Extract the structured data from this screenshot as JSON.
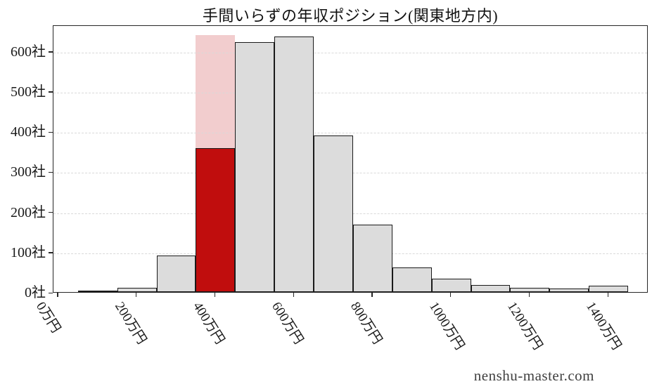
{
  "page": {
    "title": "手間いらずの年収ポジション(関東地方内)",
    "watermark": "nenshu-master.com"
  },
  "chart_data": {
    "type": "bar",
    "subtype": "histogram",
    "title": "手間いらずの年収ポジション(関東地方内)",
    "xlabel": "",
    "ylabel": "",
    "unit_x": "万円",
    "unit_y": "社",
    "grid": "horizontal",
    "legend": "none",
    "xlim": [
      -12.5,
      1502
    ],
    "ylim": [
      0,
      666
    ],
    "bin_edges": [
      50,
      150,
      250,
      350,
      450,
      550,
      650,
      750,
      850,
      950,
      1050,
      1150,
      1250,
      1350,
      1450
    ],
    "bin_centers": [
      100,
      200,
      300,
      400,
      500,
      600,
      700,
      800,
      900,
      1000,
      1100,
      1200,
      1300,
      1400
    ],
    "values": [
      2,
      11,
      91,
      640,
      622,
      637,
      390,
      167,
      62,
      33,
      17,
      10,
      8,
      16
    ],
    "highlight": {
      "bin_index": 3,
      "bin_label": "400万円",
      "bin_total": 640,
      "company_position": 359,
      "bar_color": "#c00d0d",
      "bin_bg_color": "#f2cdce"
    },
    "bar_color": "#dcdcdc",
    "bar_edge_color": "#1a1a1a",
    "grid_color": "#d9d9d9",
    "axis_color": "#262626",
    "text_color": "#1a1a1a",
    "x_ticks": [
      {
        "v": 0,
        "label": "0万円"
      },
      {
        "v": 200,
        "label": "200万円"
      },
      {
        "v": 400,
        "label": "400万円"
      },
      {
        "v": 600,
        "label": "600万円"
      },
      {
        "v": 800,
        "label": "800万円"
      },
      {
        "v": 1000,
        "label": "1000万円"
      },
      {
        "v": 1200,
        "label": "1200万円"
      },
      {
        "v": 1400,
        "label": "1400万円"
      }
    ],
    "y_ticks": [
      {
        "v": 0,
        "label": "0社"
      },
      {
        "v": 100,
        "label": "100社"
      },
      {
        "v": 200,
        "label": "200社"
      },
      {
        "v": 300,
        "label": "300社"
      },
      {
        "v": 400,
        "label": "400社"
      },
      {
        "v": 500,
        "label": "500社"
      },
      {
        "v": 600,
        "label": "600社"
      }
    ]
  }
}
